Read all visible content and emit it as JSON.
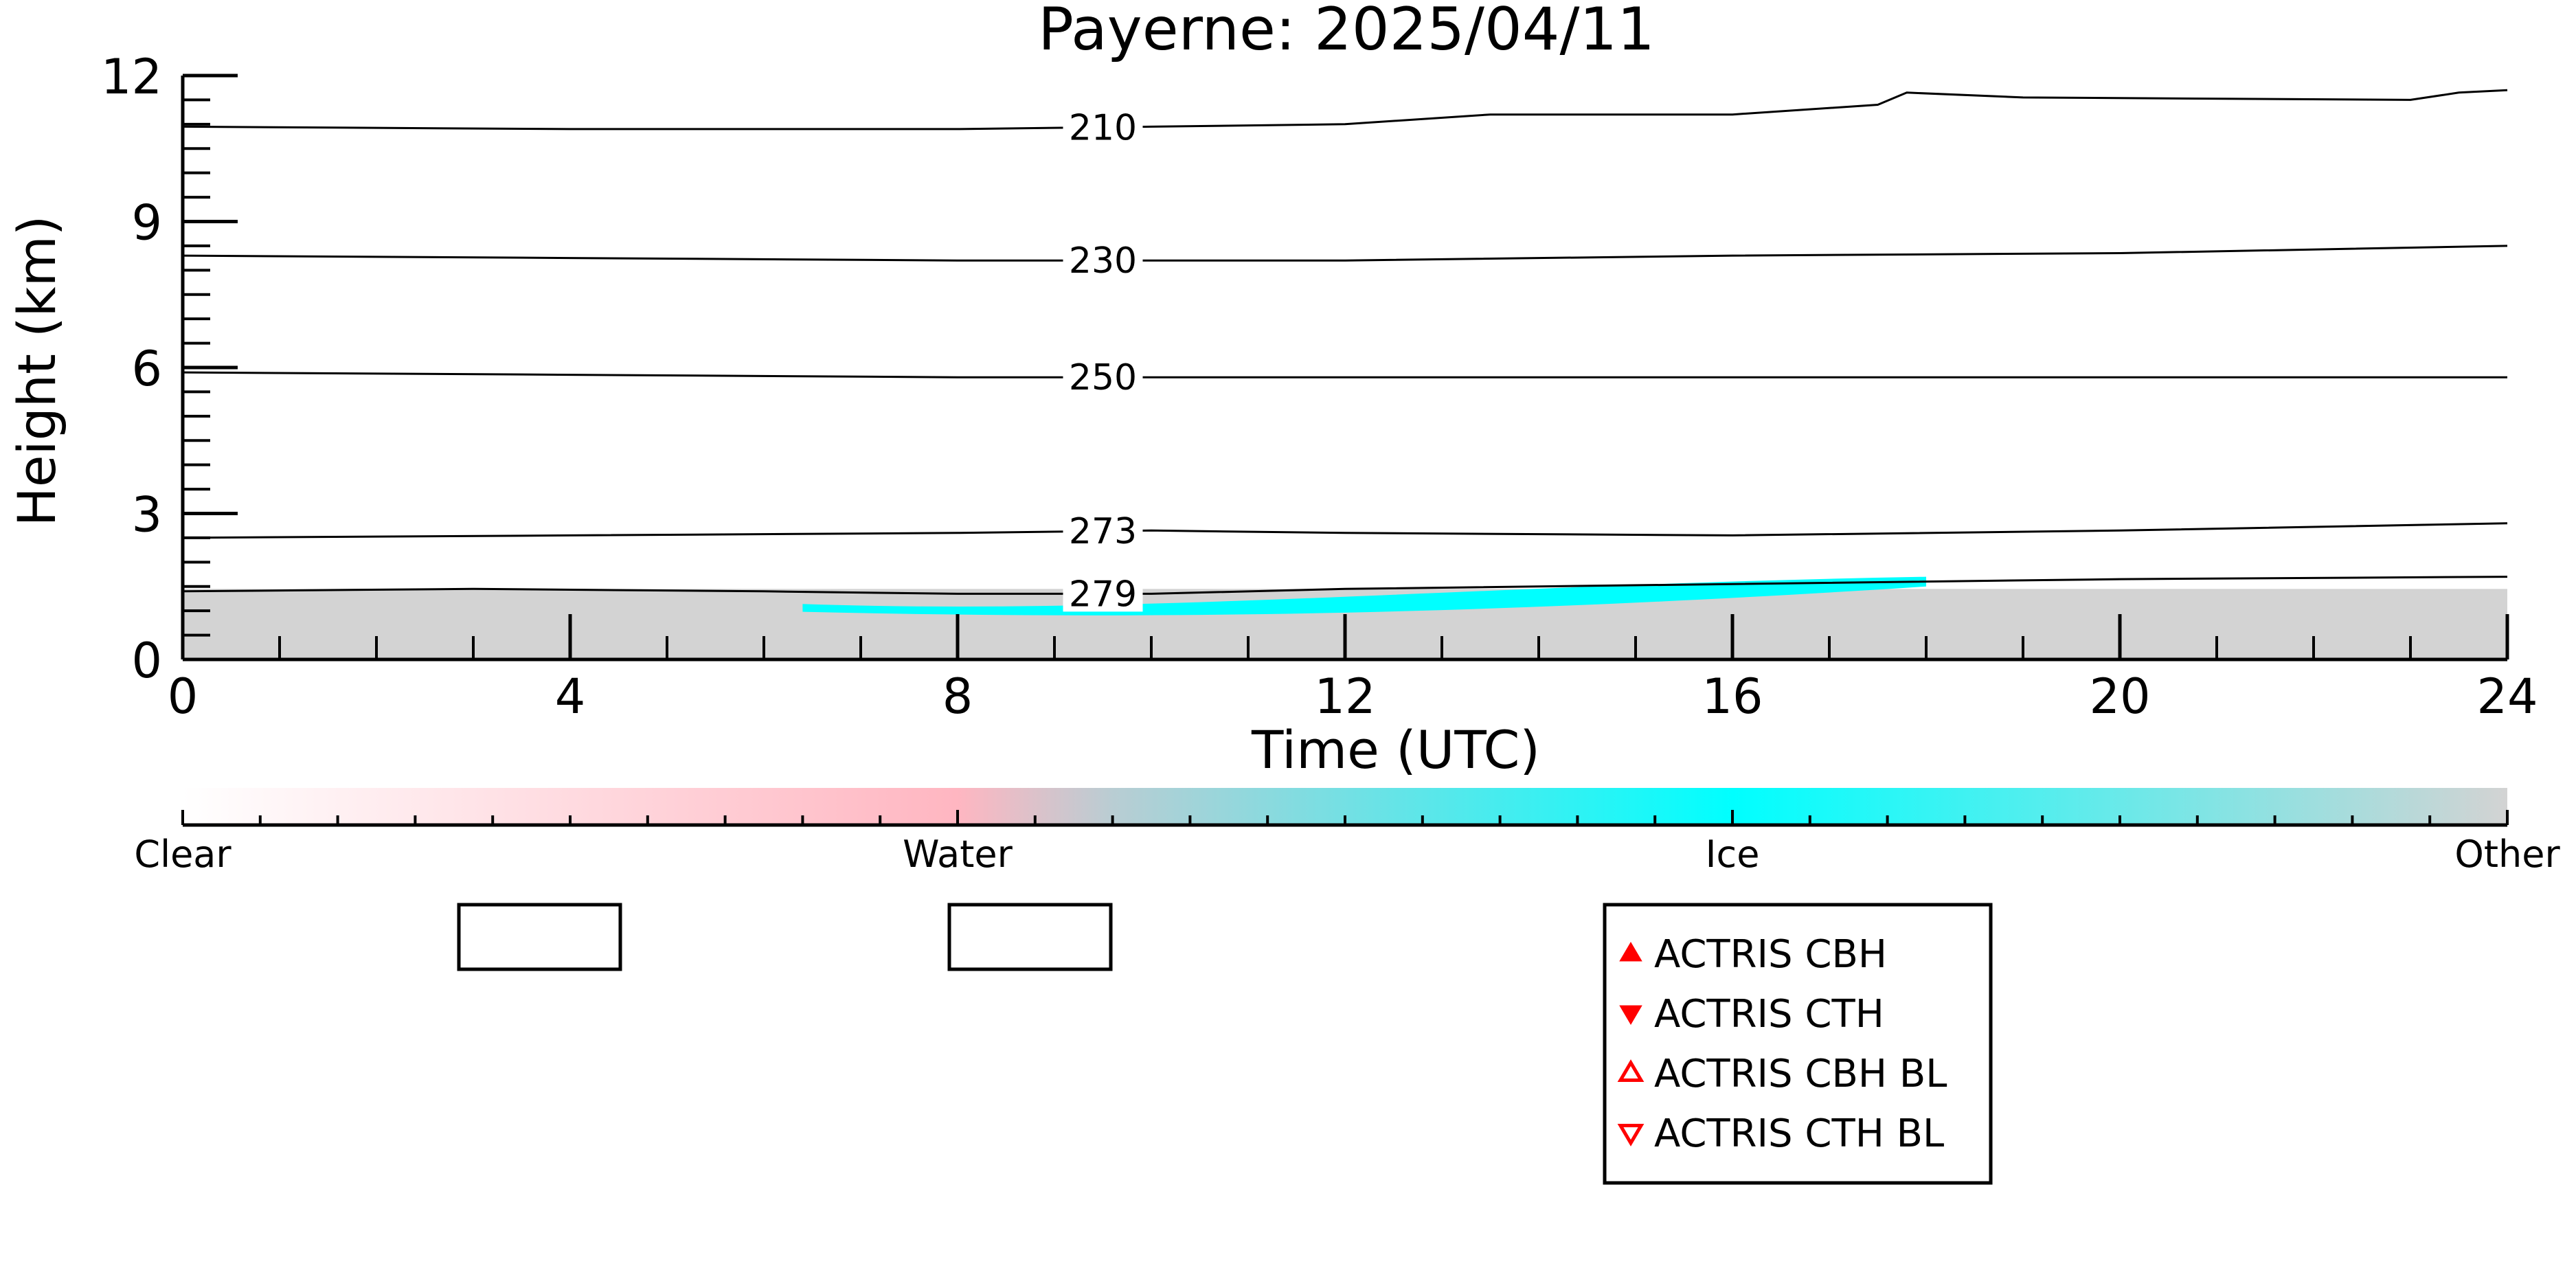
{
  "chart_data": {
    "type": "heatmap",
    "title": "Payerne: 2025/04/11",
    "xlabel": "Time (UTC)",
    "ylabel": "Height (km)",
    "xlim": [
      0,
      24
    ],
    "ylim": [
      0,
      12
    ],
    "x_ticks": [
      "0",
      "4",
      "8",
      "12",
      "16",
      "20",
      "24"
    ],
    "y_ticks": [
      "0",
      "3",
      "6",
      "9",
      "12"
    ],
    "grid": false,
    "classes": [
      {
        "name": "Clear",
        "color": "#ffffff"
      },
      {
        "name": "Water",
        "color": "#ffb6c1"
      },
      {
        "name": "Ice",
        "color": "#00ffff"
      },
      {
        "name": "Other",
        "color": "#d3d3d3"
      }
    ],
    "regions": [
      {
        "class": "Other",
        "x": [
          0,
          24
        ],
        "y": [
          0,
          1.45
        ]
      },
      {
        "class": "Ice",
        "x": [
          6.4,
          18.0
        ],
        "y": [
          0.9,
          1.7
        ]
      }
    ],
    "temperature_contours": [
      {
        "label": "210",
        "x": [
          0,
          4,
          8,
          10,
          12,
          13.5,
          16,
          17.5,
          17.8,
          19,
          23,
          23.5,
          24
        ],
        "y": [
          10.95,
          10.9,
          10.9,
          10.95,
          11.0,
          11.2,
          11.2,
          11.4,
          11.65,
          11.55,
          11.5,
          11.65,
          11.7
        ]
      },
      {
        "label": "230",
        "x": [
          0,
          4,
          8,
          12,
          16,
          20,
          24
        ],
        "y": [
          8.3,
          8.25,
          8.2,
          8.2,
          8.3,
          8.35,
          8.5
        ]
      },
      {
        "label": "250",
        "x": [
          0,
          4,
          8,
          12,
          16,
          20,
          24
        ],
        "y": [
          5.9,
          5.85,
          5.8,
          5.8,
          5.8,
          5.8,
          5.8
        ]
      },
      {
        "label": "273",
        "x": [
          0,
          4,
          8,
          10,
          12,
          16,
          20,
          24
        ],
        "y": [
          2.5,
          2.55,
          2.6,
          2.65,
          2.6,
          2.55,
          2.65,
          2.8
        ]
      },
      {
        "label": "279",
        "x": [
          0,
          3,
          6,
          8,
          10,
          12,
          16,
          20,
          24
        ],
        "y": [
          1.4,
          1.45,
          1.4,
          1.35,
          1.35,
          1.45,
          1.55,
          1.65,
          1.7
        ]
      }
    ],
    "legend_placement": "bottom-center",
    "legend": [
      {
        "label": "ACTRIS CBH",
        "marker": "triangle-up-filled",
        "color": "#ff0000"
      },
      {
        "label": "ACTRIS CTH",
        "marker": "triangle-down-filled",
        "color": "#ff0000"
      },
      {
        "label": "ACTRIS CBH BL",
        "marker": "triangle-up-open",
        "color": "#ff0000"
      },
      {
        "label": "ACTRIS CTH BL",
        "marker": "triangle-down-open",
        "color": "#ff0000"
      }
    ]
  }
}
